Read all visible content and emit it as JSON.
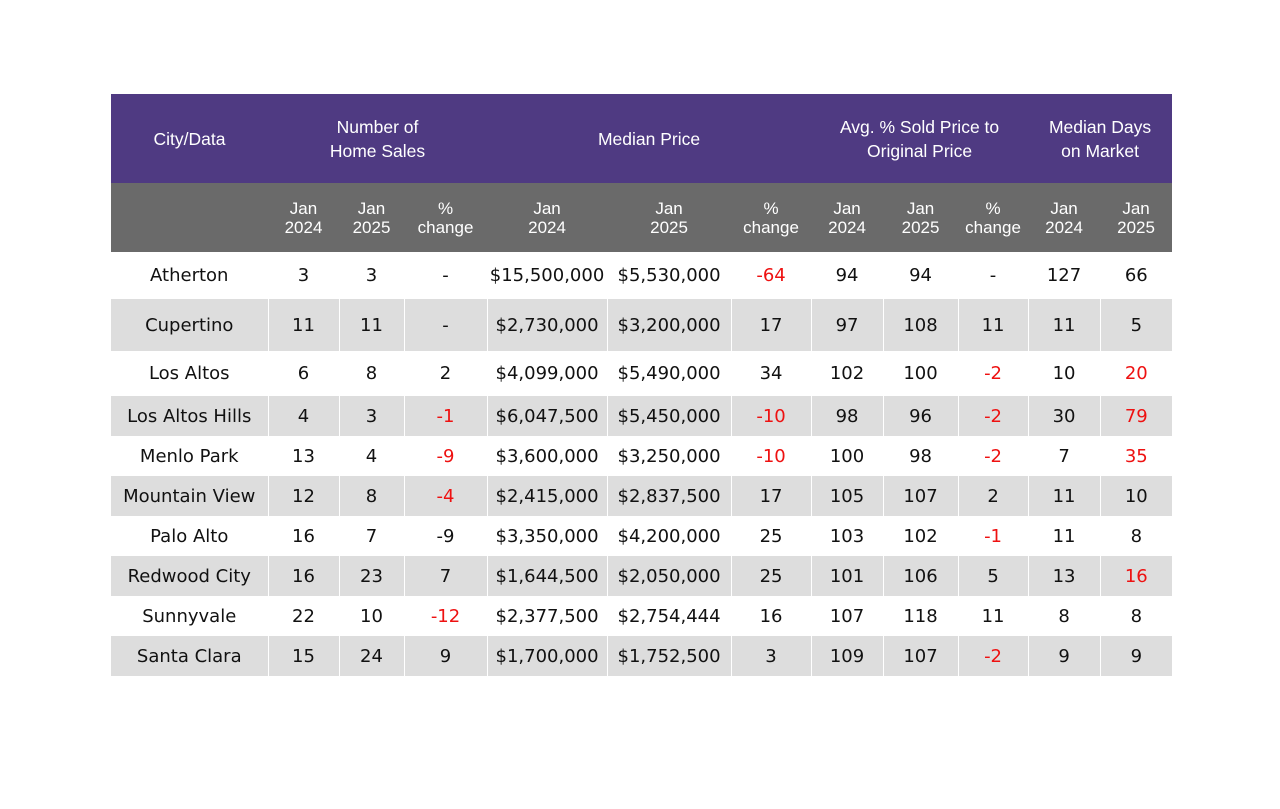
{
  "header": {
    "groups": [
      "City/Data",
      "Number of\nHome Sales",
      "Median Price",
      "Avg. % Sold Price to\nOriginal Price",
      "Median Days\non Market"
    ],
    "subheaders": [
      "",
      "Jan\n2024",
      "Jan\n2025",
      "%\nchange",
      "Jan\n2024",
      "Jan\n2025",
      "%\nchange",
      "Jan\n2024",
      "Jan\n2025",
      "%\nchange",
      "Jan\n2024",
      "Jan\n2025"
    ]
  },
  "rows": [
    {
      "cells": [
        "Atherton",
        "3",
        "3",
        "-",
        "$15,500,000",
        "$5,530,000",
        "-64",
        "94",
        "94",
        "-",
        "127",
        "66"
      ],
      "negative": [
        6
      ]
    },
    {
      "cells": [
        "Cupertino",
        "11",
        "11",
        "-",
        "$2,730,000",
        "$3,200,000",
        "17",
        "97",
        "108",
        "11",
        "11",
        "5"
      ],
      "negative": []
    },
    {
      "cells": [
        "Los Altos",
        "6",
        "8",
        "2",
        "$4,099,000",
        "$5,490,000",
        "34",
        "102",
        "100",
        "-2",
        "10",
        "20"
      ],
      "negative": [
        9,
        11
      ]
    },
    {
      "cells": [
        "Los Altos Hills",
        "4",
        "3",
        "-1",
        "$6,047,500",
        "$5,450,000",
        "-10",
        "98",
        "96",
        "-2",
        "30",
        "79"
      ],
      "negative": [
        3,
        6,
        9,
        11
      ]
    },
    {
      "cells": [
        "Menlo Park",
        "13",
        "4",
        "-9",
        "$3,600,000",
        "$3,250,000",
        "-10",
        "100",
        "98",
        "-2",
        "7",
        "35"
      ],
      "negative": [
        3,
        6,
        9,
        11
      ]
    },
    {
      "cells": [
        "Mountain View",
        "12",
        "8",
        "-4",
        "$2,415,000",
        "$2,837,500",
        "17",
        "105",
        "107",
        "2",
        "11",
        "10"
      ],
      "negative": [
        3
      ]
    },
    {
      "cells": [
        "Palo Alto",
        "16",
        "7",
        "-9",
        "$3,350,000",
        "$4,200,000",
        "25",
        "103",
        "102",
        "-1",
        "11",
        "8"
      ],
      "negative": [
        9
      ]
    },
    {
      "cells": [
        "Redwood City",
        "16",
        "23",
        "7",
        "$1,644,500",
        "$2,050,000",
        "25",
        "101",
        "106",
        "5",
        "13",
        "16"
      ],
      "negative": [
        11
      ]
    },
    {
      "cells": [
        "Sunnyvale",
        "22",
        "10",
        "-12",
        "$2,377,500",
        "$2,754,444",
        "16",
        "107",
        "118",
        "11",
        "8",
        "8"
      ],
      "negative": [
        3
      ]
    },
    {
      "cells": [
        "Santa Clara",
        "15",
        "24",
        "9",
        "$1,700,000",
        "$1,752,500",
        "3",
        "109",
        "107",
        "-2",
        "9",
        "9"
      ],
      "negative": [
        9
      ]
    }
  ],
  "colors": {
    "header_group_bg": "#4f3a82",
    "header_sub_bg": "#6a6a6a",
    "stripe_bg": "#dddddd",
    "negative_text": "#ee1111"
  }
}
